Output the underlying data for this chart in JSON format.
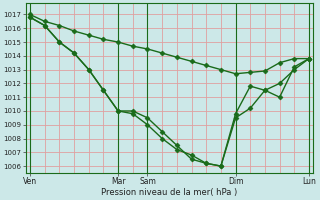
{
  "xlabel": "Pression niveau de la mer( hPa )",
  "bg_color": "#cce8e8",
  "grid_color_h": "#e0a0a0",
  "grid_color_v": "#e0a0a0",
  "line_color": "#1a6b1a",
  "marker": "D",
  "markersize": 2.5,
  "linewidth": 1.0,
  "ylim": [
    1005.5,
    1017.8
  ],
  "yticks": [
    1006,
    1007,
    1008,
    1009,
    1010,
    1011,
    1012,
    1013,
    1014,
    1015,
    1016,
    1017
  ],
  "xtick_labels": [
    "Ven",
    "Mar",
    "Sam",
    "Dim",
    "Lun"
  ],
  "xtick_positions": [
    0,
    6,
    8,
    14,
    19
  ],
  "vline_positions": [
    0,
    6,
    8,
    14,
    19
  ],
  "line1_x": [
    0,
    1,
    2,
    3,
    4,
    5,
    6,
    7,
    8,
    9,
    10,
    11,
    12,
    13,
    14,
    15,
    16,
    17,
    18,
    19
  ],
  "line1_y": [
    1017.0,
    1016.5,
    1016.2,
    1015.8,
    1015.5,
    1015.2,
    1015.0,
    1014.7,
    1014.5,
    1014.2,
    1013.9,
    1013.6,
    1013.3,
    1013.0,
    1012.7,
    1012.8,
    1012.9,
    1013.5,
    1013.8,
    1013.8
  ],
  "line2_x": [
    0,
    1,
    2,
    3,
    4,
    5,
    6,
    7,
    8,
    9,
    10,
    11,
    12,
    13,
    14,
    15,
    16,
    17,
    18,
    19
  ],
  "line2_y": [
    1016.8,
    1016.2,
    1015.0,
    1014.2,
    1013.0,
    1011.5,
    1010.0,
    1010.0,
    1009.5,
    1008.5,
    1007.5,
    1006.5,
    1006.2,
    1006.0,
    1009.5,
    1010.2,
    1011.5,
    1012.0,
    1013.0,
    1013.8
  ],
  "line3_x": [
    0,
    1,
    2,
    3,
    4,
    5,
    6,
    7,
    8,
    9,
    10,
    11,
    12,
    13,
    14,
    15,
    16,
    17,
    18,
    19
  ],
  "line3_y": [
    1016.8,
    1016.2,
    1015.0,
    1014.2,
    1013.0,
    1011.5,
    1010.0,
    1009.8,
    1009.0,
    1008.0,
    1007.2,
    1006.8,
    1006.2,
    1006.0,
    1009.8,
    1011.8,
    1011.5,
    1011.0,
    1013.2,
    1013.8
  ]
}
